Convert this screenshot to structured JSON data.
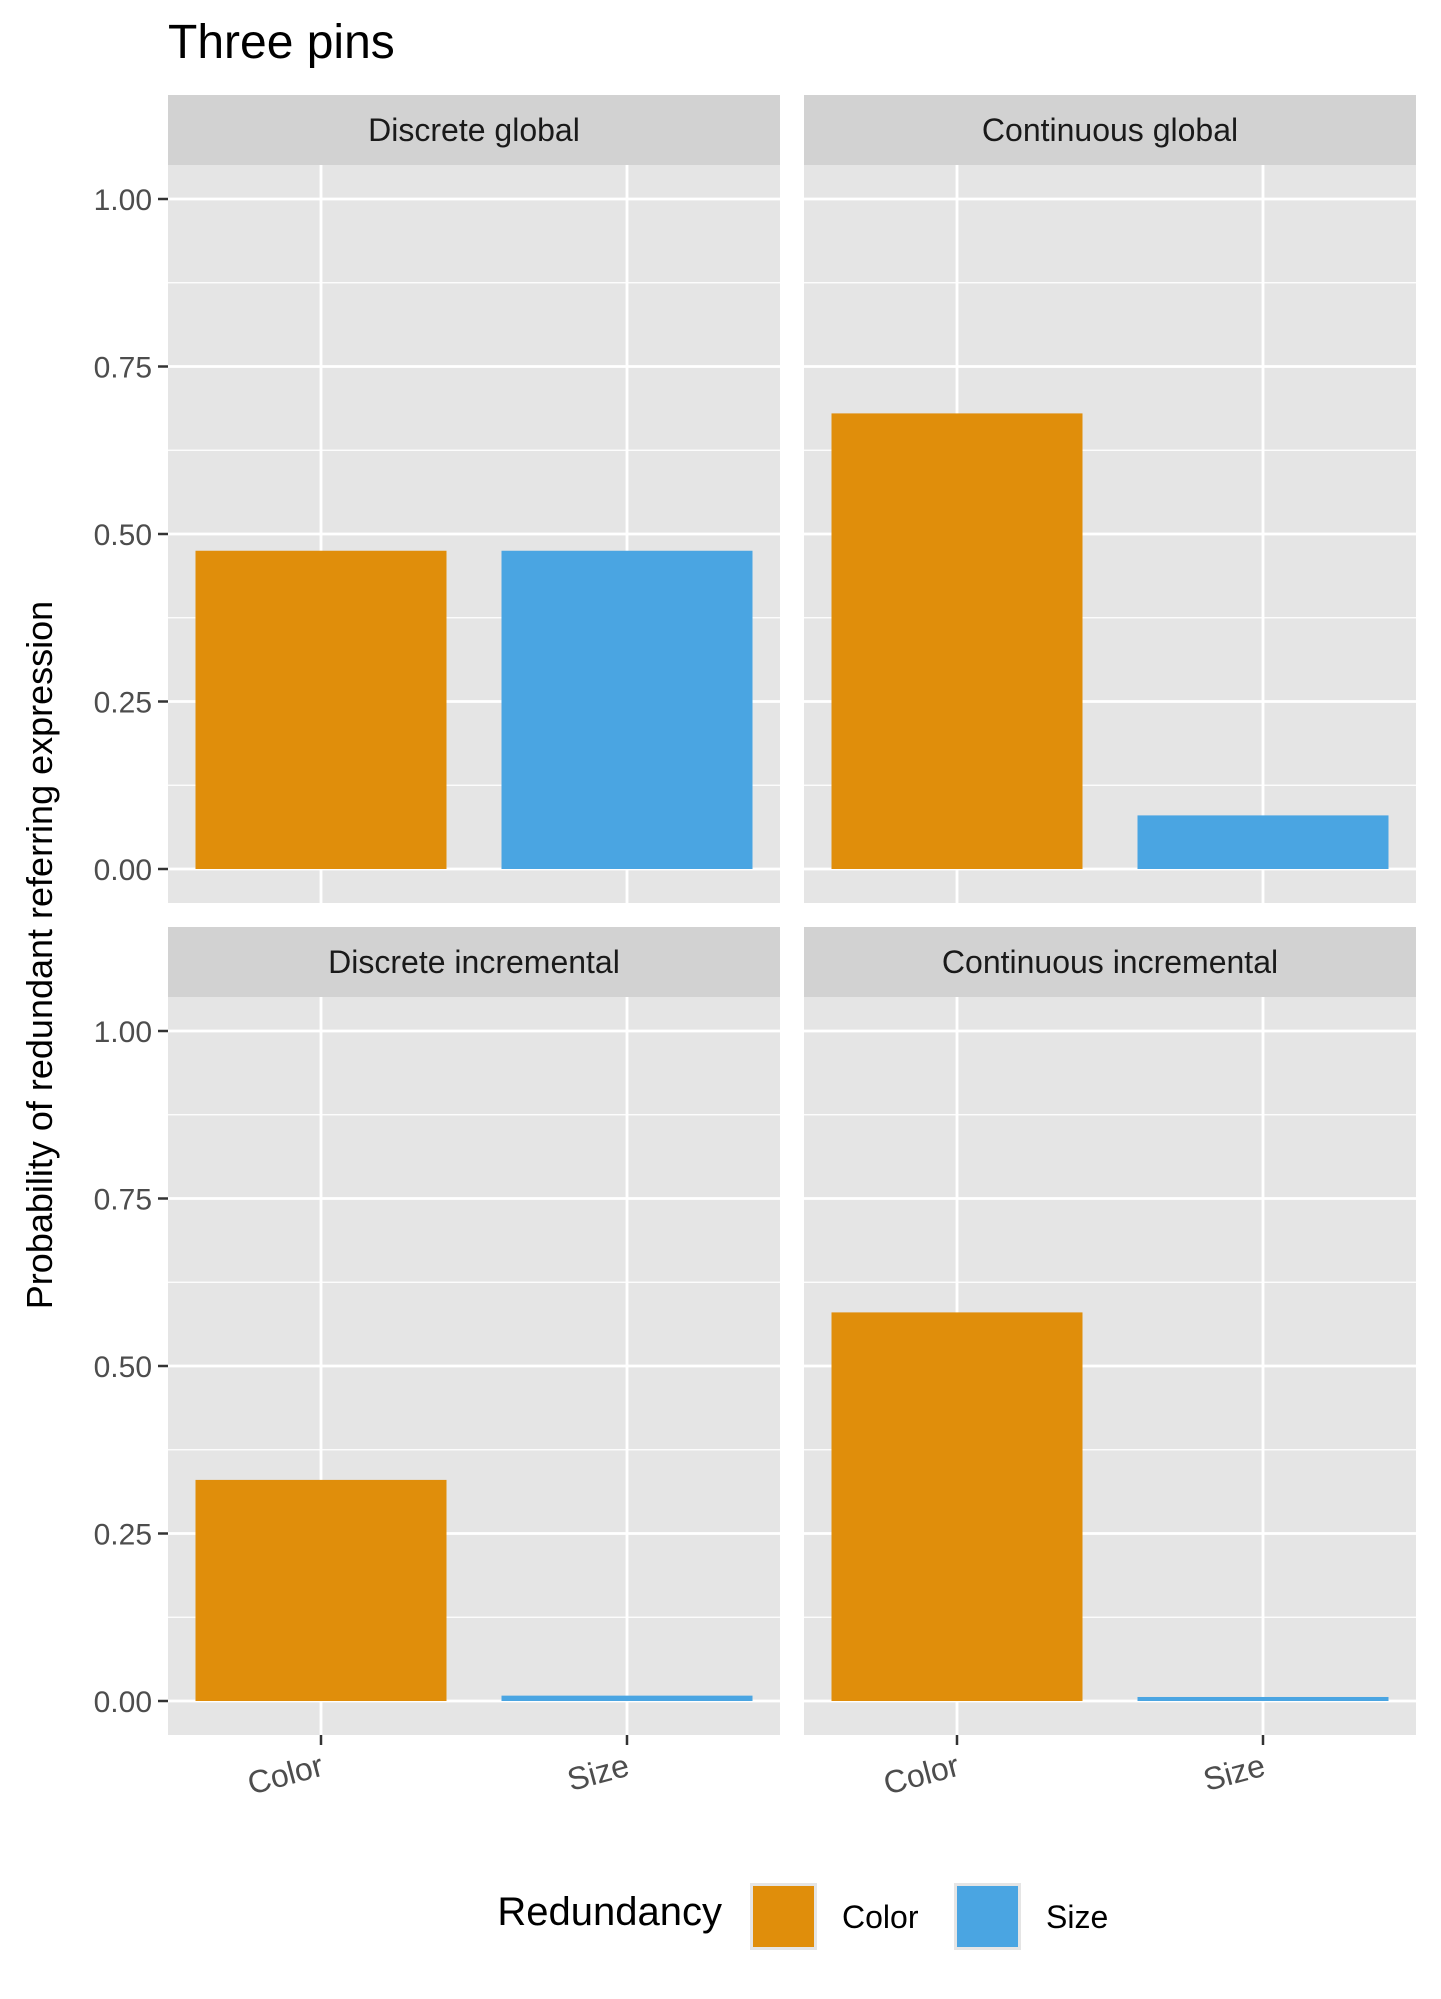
{
  "chart_data": {
    "type": "bar",
    "title": "Three pins",
    "xlabel": "",
    "ylabel": "Probability of redundant referring expression",
    "ylim": [
      0,
      1.05
    ],
    "yticks": [
      0,
      0.25,
      0.5,
      0.75,
      1
    ],
    "ytick_labels": [
      "0.00",
      "0.25",
      "0.50",
      "0.75",
      "1.00"
    ],
    "categories": [
      "Color",
      "Size"
    ],
    "grid": true,
    "legend": {
      "title": "Redundancy",
      "position": "bottom",
      "entries": [
        "Color",
        "Size"
      ]
    },
    "colors": {
      "Color": "#E08E0B",
      "Size": "#4AA5E2",
      "panel_bg": "#E5E5E5",
      "strip_bg": "#D2D2D2",
      "grid": "#FFFFFF"
    },
    "panels": [
      {
        "name": "Discrete global",
        "values": [
          0.475,
          0.475
        ]
      },
      {
        "name": "Continuous global",
        "values": [
          0.68,
          0.08
        ]
      },
      {
        "name": "Discrete incremental",
        "values": [
          0.33,
          0.008
        ]
      },
      {
        "name": "Continuous incremental",
        "values": [
          0.58,
          0.006
        ]
      }
    ]
  }
}
